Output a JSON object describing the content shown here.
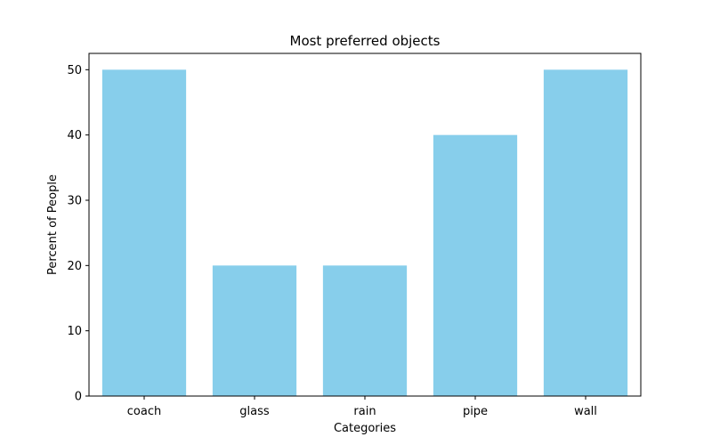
{
  "chart_data": {
    "type": "bar",
    "title": "Most preferred objects",
    "xlabel": "Categories",
    "ylabel": "Percent of People",
    "categories": [
      "coach",
      "glass",
      "rain",
      "pipe",
      "wall"
    ],
    "values": [
      50,
      20,
      20,
      40,
      50
    ],
    "ylim": [
      0,
      52.5
    ],
    "yticks": [
      0,
      10,
      20,
      30,
      40,
      50
    ],
    "bar_color": "#87ceeb",
    "grid": false,
    "legend": "none"
  }
}
